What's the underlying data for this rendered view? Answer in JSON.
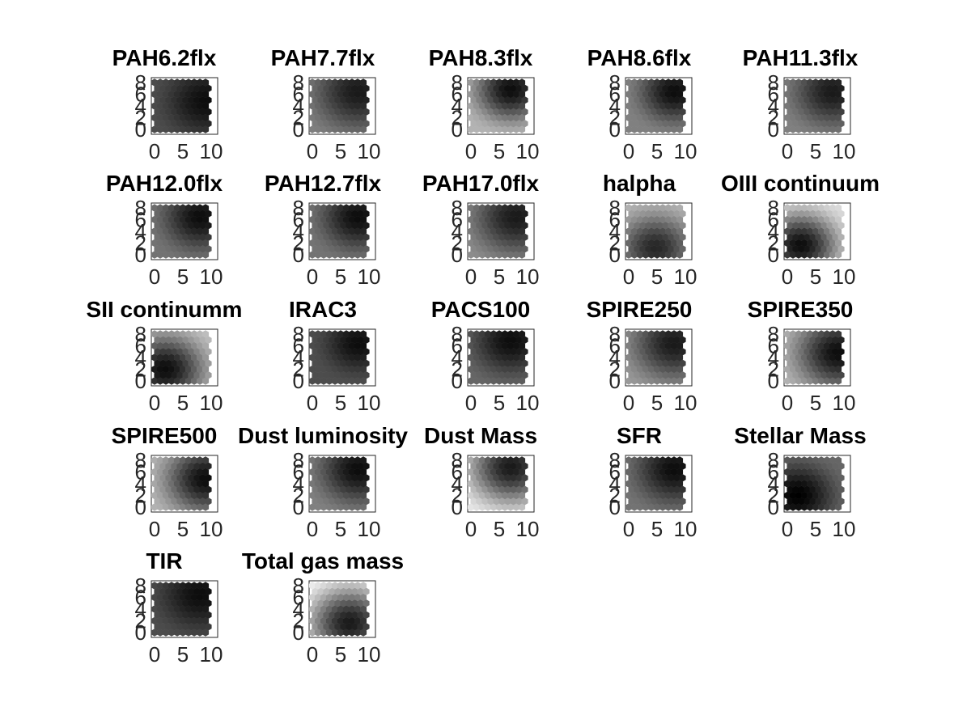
{
  "figure": {
    "background": "#ffffff",
    "colormap": "gray (black = high, white = low)"
  },
  "chart_data": [
    {
      "type": "heatmap",
      "title": "PAH6.2flx",
      "xticks": [
        "0",
        "5",
        "10"
      ],
      "yticks": [
        "0",
        "2",
        "4",
        "6",
        "8"
      ],
      "xlim": [
        0,
        10
      ],
      "ylim": [
        0,
        8
      ],
      "grid": false,
      "pattern": [
        2,
        0.95,
        0.7,
        0.9
      ]
    },
    {
      "type": "heatmap",
      "title": "PAH7.7flx",
      "xticks": [
        "0",
        "5",
        "10"
      ],
      "yticks": [
        "0",
        "2",
        "4",
        "6",
        "8"
      ],
      "xlim": [
        0,
        10
      ],
      "ylim": [
        0,
        8
      ],
      "grid": false,
      "pattern": [
        1,
        0.9,
        0.5,
        1.0
      ]
    },
    {
      "type": "heatmap",
      "title": "PAH8.3flx",
      "xticks": [
        "0",
        "5",
        "10"
      ],
      "yticks": [
        "0",
        "2",
        "4",
        "6",
        "8"
      ],
      "xlim": [
        0,
        10
      ],
      "ylim": [
        0,
        8
      ],
      "grid": false,
      "pattern": [
        3,
        0.95,
        0.3,
        0.85
      ]
    },
    {
      "type": "heatmap",
      "title": "PAH8.6flx",
      "xticks": [
        "0",
        "5",
        "10"
      ],
      "yticks": [
        "0",
        "2",
        "4",
        "6",
        "8"
      ],
      "xlim": [
        0,
        10
      ],
      "ylim": [
        0,
        8
      ],
      "grid": false,
      "pattern": [
        1,
        0.95,
        0.5,
        0.8
      ]
    },
    {
      "type": "heatmap",
      "title": "PAH11.3flx",
      "xticks": [
        "0",
        "5",
        "10"
      ],
      "yticks": [
        "0",
        "2",
        "4",
        "6",
        "8"
      ],
      "xlim": [
        0,
        10
      ],
      "ylim": [
        0,
        8
      ],
      "grid": false,
      "pattern": [
        1,
        0.9,
        0.5,
        0.9
      ]
    },
    {
      "type": "heatmap",
      "title": "PAH12.0flx",
      "xticks": [
        "0",
        "5",
        "10"
      ],
      "yticks": [
        "0",
        "2",
        "4",
        "6",
        "8"
      ],
      "xlim": [
        0,
        10
      ],
      "ylim": [
        0,
        8
      ],
      "grid": false,
      "pattern": [
        1,
        0.95,
        0.55,
        0.85
      ]
    },
    {
      "type": "heatmap",
      "title": "PAH12.7flx",
      "xticks": [
        "0",
        "5",
        "10"
      ],
      "yticks": [
        "0",
        "2",
        "4",
        "6",
        "8"
      ],
      "xlim": [
        0,
        10
      ],
      "ylim": [
        0,
        8
      ],
      "grid": false,
      "pattern": [
        1,
        0.95,
        0.55,
        0.85
      ]
    },
    {
      "type": "heatmap",
      "title": "PAH17.0flx",
      "xticks": [
        "0",
        "5",
        "10"
      ],
      "yticks": [
        "0",
        "2",
        "4",
        "6",
        "8"
      ],
      "xlim": [
        0,
        10
      ],
      "ylim": [
        0,
        8
      ],
      "grid": false,
      "pattern": [
        1,
        0.9,
        0.45,
        1.0
      ]
    },
    {
      "type": "heatmap",
      "title": "halpha",
      "xticks": [
        "0",
        "5",
        "10"
      ],
      "yticks": [
        "0",
        "2",
        "4",
        "6",
        "8"
      ],
      "xlim": [
        0,
        10
      ],
      "ylim": [
        0,
        8
      ],
      "grid": false,
      "pattern": [
        6,
        0.85,
        0.3,
        0.9
      ]
    },
    {
      "type": "heatmap",
      "title": "OIII continuum",
      "xticks": [
        "0",
        "5",
        "10"
      ],
      "yticks": [
        "0",
        "2",
        "4",
        "6",
        "8"
      ],
      "xlim": [
        0,
        10
      ],
      "ylim": [
        0,
        8
      ],
      "grid": false,
      "pattern": [
        5,
        0.95,
        0.15,
        0.9
      ]
    },
    {
      "type": "heatmap",
      "title": "SII continumm",
      "xticks": [
        "0",
        "5",
        "10"
      ],
      "yticks": [
        "0",
        "2",
        "4",
        "6",
        "8"
      ],
      "xlim": [
        0,
        10
      ],
      "ylim": [
        0,
        8
      ],
      "grid": false,
      "pattern": [
        4,
        0.95,
        0.25,
        0.95
      ]
    },
    {
      "type": "heatmap",
      "title": "IRAC3",
      "xticks": [
        "0",
        "5",
        "10"
      ],
      "yticks": [
        "0",
        "2",
        "4",
        "6",
        "8"
      ],
      "xlim": [
        0,
        10
      ],
      "ylim": [
        0,
        8
      ],
      "grid": false,
      "pattern": [
        1,
        0.95,
        0.7,
        0.75
      ]
    },
    {
      "type": "heatmap",
      "title": "PACS100",
      "xticks": [
        "0",
        "5",
        "10"
      ],
      "yticks": [
        "0",
        "2",
        "4",
        "6",
        "8"
      ],
      "xlim": [
        0,
        10
      ],
      "ylim": [
        0,
        8
      ],
      "grid": false,
      "pattern": [
        3,
        0.95,
        0.6,
        0.9
      ]
    },
    {
      "type": "heatmap",
      "title": "SPIRE250",
      "xticks": [
        "0",
        "5",
        "10"
      ],
      "yticks": [
        "0",
        "2",
        "4",
        "6",
        "8"
      ],
      "xlim": [
        0,
        10
      ],
      "ylim": [
        0,
        8
      ],
      "grid": false,
      "pattern": [
        1,
        0.9,
        0.4,
        1.0
      ]
    },
    {
      "type": "heatmap",
      "title": "SPIRE350",
      "xticks": [
        "0",
        "5",
        "10"
      ],
      "yticks": [
        "0",
        "2",
        "4",
        "6",
        "8"
      ],
      "xlim": [
        0,
        10
      ],
      "ylim": [
        0,
        8
      ],
      "grid": false,
      "pattern": [
        2,
        0.95,
        0.3,
        1.0
      ]
    },
    {
      "type": "heatmap",
      "title": "SPIRE500",
      "xticks": [
        "0",
        "5",
        "10"
      ],
      "yticks": [
        "0",
        "2",
        "4",
        "6",
        "8"
      ],
      "xlim": [
        0,
        10
      ],
      "ylim": [
        0,
        8
      ],
      "grid": false,
      "pattern": [
        2,
        0.95,
        0.3,
        0.95
      ]
    },
    {
      "type": "heatmap",
      "title": "Dust luminosity",
      "xticks": [
        "0",
        "5",
        "10"
      ],
      "yticks": [
        "0",
        "2",
        "4",
        "6",
        "8"
      ],
      "xlim": [
        0,
        10
      ],
      "ylim": [
        0,
        8
      ],
      "grid": false,
      "pattern": [
        1,
        0.95,
        0.5,
        0.9
      ]
    },
    {
      "type": "heatmap",
      "title": "Dust Mass",
      "xticks": [
        "0",
        "5",
        "10"
      ],
      "yticks": [
        "0",
        "2",
        "4",
        "6",
        "8"
      ],
      "xlim": [
        0,
        10
      ],
      "ylim": [
        0,
        8
      ],
      "grid": false,
      "pattern": [
        3,
        0.9,
        0.1,
        1.0
      ]
    },
    {
      "type": "heatmap",
      "title": "SFR",
      "xticks": [
        "0",
        "5",
        "10"
      ],
      "yticks": [
        "0",
        "2",
        "4",
        "6",
        "8"
      ],
      "xlim": [
        0,
        10
      ],
      "ylim": [
        0,
        8
      ],
      "grid": false,
      "pattern": [
        1,
        0.95,
        0.55,
        0.9
      ]
    },
    {
      "type": "heatmap",
      "title": "Stellar Mass",
      "xticks": [
        "0",
        "5",
        "10"
      ],
      "yticks": [
        "0",
        "2",
        "4",
        "6",
        "8"
      ],
      "xlim": [
        0,
        10
      ],
      "ylim": [
        0,
        8
      ],
      "grid": false,
      "pattern": [
        4,
        1.0,
        0.6,
        0.85
      ]
    },
    {
      "type": "heatmap",
      "title": "TIR",
      "xticks": [
        "0",
        "5",
        "10"
      ],
      "yticks": [
        "0",
        "2",
        "4",
        "6",
        "8"
      ],
      "xlim": [
        0,
        10
      ],
      "ylim": [
        0,
        8
      ],
      "grid": false,
      "pattern": [
        1,
        0.95,
        0.7,
        0.9
      ]
    },
    {
      "type": "heatmap",
      "title": "Total gas mass",
      "xticks": [
        "0",
        "5",
        "10"
      ],
      "yticks": [
        "0",
        "2",
        "4",
        "6",
        "8"
      ],
      "xlim": [
        0,
        10
      ],
      "ylim": [
        0,
        8
      ],
      "grid": false,
      "pattern": [
        7,
        0.9,
        0.05,
        1.0
      ]
    }
  ]
}
